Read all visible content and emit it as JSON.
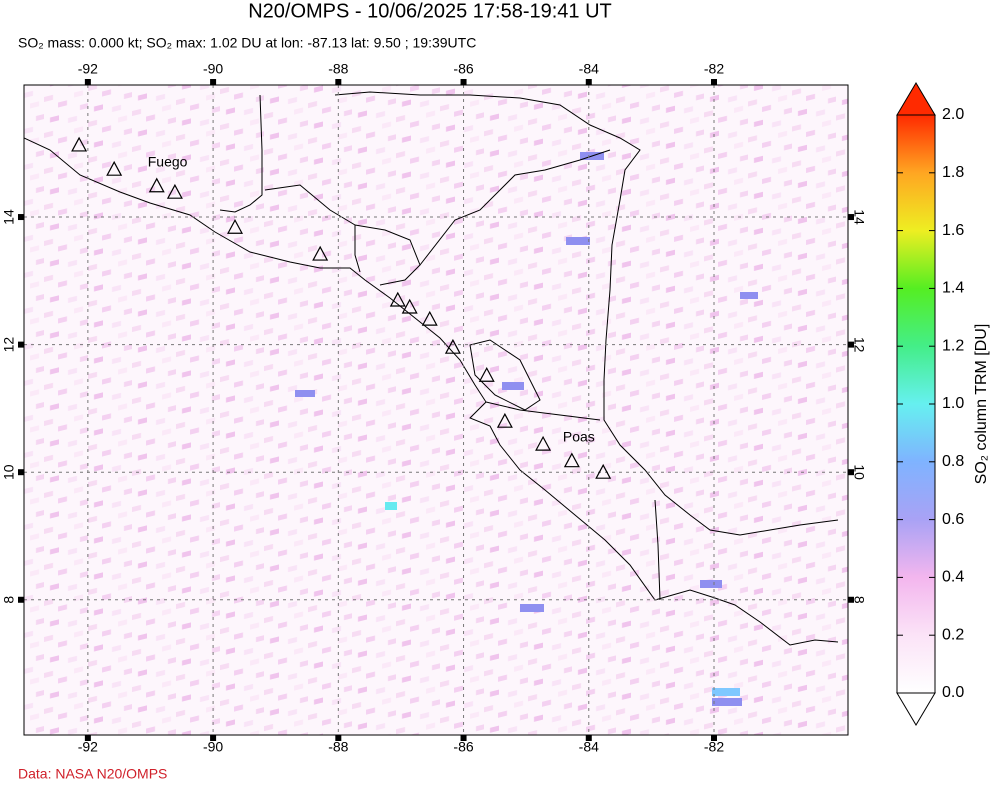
{
  "title": "N20/OMPS - 10/06/2025 17:58-19:41 UT",
  "subtitle": "SO₂ mass: 0.000 kt; SO₂ max: 1.02 DU at lon: -87.13 lat: 9.50 ; 19:39UTC",
  "map": {
    "xlim": [
      -93.02,
      -79.86
    ],
    "ylim": [
      5.88,
      16.07
    ],
    "xticks": [
      -92,
      -90,
      -88,
      -86,
      -84,
      -82
    ],
    "yticks": [
      8,
      10,
      12,
      14
    ],
    "grid": true,
    "volcanoes": [
      {
        "lon": -92.14,
        "lat": 15.13
      },
      {
        "lon": -91.58,
        "lat": 14.75
      },
      {
        "lon": -90.9,
        "lat": 14.49,
        "label": "Fuego"
      },
      {
        "lon": -90.61,
        "lat": 14.39
      },
      {
        "lon": -89.65,
        "lat": 13.84
      },
      {
        "lon": -88.29,
        "lat": 13.42
      },
      {
        "lon": -87.05,
        "lat": 12.7
      },
      {
        "lon": -86.86,
        "lat": 12.59
      },
      {
        "lon": -86.54,
        "lat": 12.4
      },
      {
        "lon": -86.17,
        "lat": 11.96
      },
      {
        "lon": -85.63,
        "lat": 11.52
      },
      {
        "lon": -85.34,
        "lat": 10.8
      },
      {
        "lon": -84.73,
        "lat": 10.44
      },
      {
        "lon": -84.27,
        "lat": 10.18,
        "label": "Poas"
      },
      {
        "lon": -83.77,
        "lat": 10.0
      }
    ]
  },
  "colorbar": {
    "label": "SO₂ column TRM [DU]",
    "lim": [
      0,
      2
    ],
    "ticks": [
      {
        "value": 0,
        "label": "0.0"
      },
      0.2,
      0.4,
      0.6,
      0.8,
      {
        "value": 1,
        "label": "1.0"
      },
      1.2,
      1.4,
      1.6,
      1.8,
      {
        "value": 2,
        "label": "2.0"
      }
    ]
  },
  "credit": "Data: NASA N20/OMPS"
}
